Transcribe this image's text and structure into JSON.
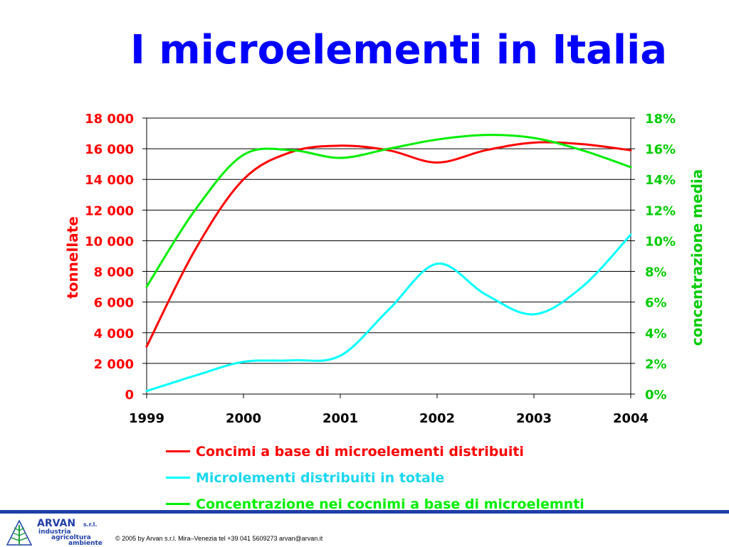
{
  "slide": {
    "title": "I microelementi in Italia"
  },
  "colors": {
    "title": "#0000ff",
    "left_axis": "#ff0000",
    "right_axis": "#00cc00",
    "series_red": "#ff0000",
    "series_cyan": "#00ffff",
    "series_green": "#00ee00",
    "brand": "#1f3fa8"
  },
  "chart_data": {
    "type": "line",
    "title": "",
    "xlabel": "",
    "ylabel": "tonnellate",
    "ylabel_right": "concentrazione media",
    "x": [
      "1999",
      "2000",
      "2001",
      "2002",
      "2003",
      "2004"
    ],
    "x_values": [
      1999,
      1999.5,
      2000,
      2000.5,
      2001,
      2001.5,
      2002,
      2002.5,
      2003,
      2003.5,
      2004
    ],
    "ylim": [
      0,
      18000
    ],
    "ylim_right": [
      0,
      18
    ],
    "y_ticks": [
      "0",
      "2 000",
      "4 000",
      "6 000",
      "8 000",
      "10 000",
      "12 000",
      "14 000",
      "16 000",
      "18 000"
    ],
    "y_right_ticks": [
      "0%",
      "2%",
      "4%",
      "6%",
      "8%",
      "10%",
      "12%",
      "14%",
      "16%",
      "18%"
    ],
    "grid": true,
    "legend_position": "bottom",
    "series": [
      {
        "name": "Concimi a base di microelementi distribuiti",
        "axis": "left",
        "color": "#ff0000",
        "values": [
          3100,
          9400,
          14000,
          15800,
          16200,
          15900,
          15100,
          15900,
          16400,
          16300,
          15900
        ]
      },
      {
        "name": "Microlementi distribuiti in totale",
        "axis": "left",
        "color": "#00ffff",
        "values": [
          200,
          1200,
          2100,
          2200,
          2500,
          5500,
          8500,
          6500,
          5200,
          7000,
          10400
        ]
      },
      {
        "name": "Concentrazione nei cocnimi a base di microelemnti",
        "axis": "right",
        "color": "#00ee00",
        "values": [
          7.0,
          12.0,
          15.6,
          15.9,
          15.4,
          16.0,
          16.6,
          16.9,
          16.7,
          15.9,
          14.8
        ]
      }
    ]
  },
  "footer": {
    "company": "ARVAN",
    "company_suffix": "s.r.l.",
    "tagline_1": "industria",
    "tagline_2": "agricoltura",
    "tagline_3": "ambiente",
    "copyright": "© 2005 by Arvan s.r.l. Mira–Venezia tel +39 041 5609273 arvan@arvan.it"
  }
}
